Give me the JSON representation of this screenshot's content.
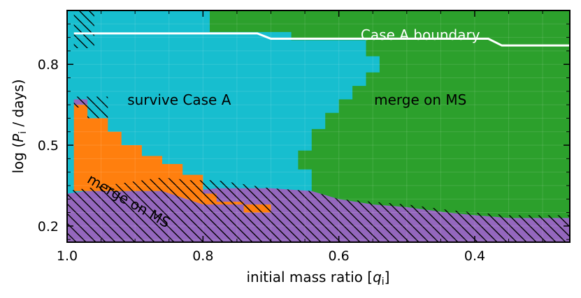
{
  "chart_data": {
    "type": "heatmap",
    "title": "",
    "xlabel": "initial mass ratio [q_i]",
    "xlabel_parts": {
      "pre": "initial mass ratio [",
      "italic": "q",
      "sub": "i",
      "post": "]"
    },
    "ylabel": "log (P_i / days)",
    "ylabel_parts": {
      "pre": "log (",
      "italic": "P",
      "sub": "i",
      "post": " / days)"
    },
    "xlim": [
      1.0,
      0.26
    ],
    "ylim": [
      0.14,
      1.0
    ],
    "x_ticks": [
      1.0,
      0.8,
      0.6,
      0.4
    ],
    "x_tick_labels": [
      "1.0",
      "0.8",
      "0.6",
      "0.4"
    ],
    "y_ticks": [
      0.2,
      0.5,
      0.8
    ],
    "y_tick_labels": [
      "0.2",
      "0.5",
      "0.8"
    ],
    "grid": true,
    "colors": {
      "survive": "#17becf",
      "merge_ms": "#2ca02c",
      "merge_ms_low": "#ff7f0e",
      "merge_other": "#9467bd",
      "boundary": "#ffffff"
    },
    "regions": [
      {
        "key": "merge_other",
        "color": "#9467bd",
        "polygon": [
          [
            1.0,
            0.14
          ],
          [
            1.0,
            0.32
          ],
          [
            0.97,
            0.33
          ],
          [
            0.92,
            0.33
          ],
          [
            0.86,
            0.33
          ],
          [
            0.82,
            0.33
          ],
          [
            0.78,
            0.34
          ],
          [
            0.7,
            0.34
          ],
          [
            0.64,
            0.33
          ],
          [
            0.6,
            0.3
          ],
          [
            0.55,
            0.28
          ],
          [
            0.5,
            0.27
          ],
          [
            0.44,
            0.25
          ],
          [
            0.4,
            0.24
          ],
          [
            0.35,
            0.23
          ],
          [
            0.3,
            0.23
          ],
          [
            0.26,
            0.23
          ],
          [
            0.26,
            0.14
          ]
        ]
      },
      {
        "key": "merge_other_top_left",
        "color": "#9467bd",
        "polygon": [
          [
            0.99,
            0.67
          ],
          [
            0.97,
            0.67
          ],
          [
            0.97,
            0.65
          ],
          [
            0.99,
            0.65
          ]
        ]
      },
      {
        "key": "merge_ms_low",
        "color": "#ff7f0e",
        "polygon": [
          [
            0.99,
            0.65
          ],
          [
            0.97,
            0.65
          ],
          [
            0.97,
            0.6
          ],
          [
            0.94,
            0.6
          ],
          [
            0.94,
            0.55
          ],
          [
            0.92,
            0.55
          ],
          [
            0.92,
            0.5
          ],
          [
            0.89,
            0.5
          ],
          [
            0.89,
            0.46
          ],
          [
            0.86,
            0.46
          ],
          [
            0.86,
            0.43
          ],
          [
            0.83,
            0.43
          ],
          [
            0.83,
            0.39
          ],
          [
            0.8,
            0.39
          ],
          [
            0.8,
            0.32
          ],
          [
            0.78,
            0.32
          ],
          [
            0.78,
            0.29
          ],
          [
            0.74,
            0.29
          ],
          [
            0.74,
            0.25
          ],
          [
            0.7,
            0.25
          ],
          [
            0.7,
            0.28
          ],
          [
            0.8,
            0.28
          ],
          [
            0.86,
            0.33
          ],
          [
            0.97,
            0.33
          ],
          [
            0.99,
            0.33
          ]
        ]
      },
      {
        "key": "merge_ms",
        "color": "#2ca02c",
        "polygon": [
          [
            0.79,
            1.0
          ],
          [
            0.26,
            1.0
          ],
          [
            0.26,
            0.23
          ],
          [
            0.3,
            0.23
          ],
          [
            0.35,
            0.23
          ],
          [
            0.4,
            0.24
          ],
          [
            0.44,
            0.25
          ],
          [
            0.5,
            0.27
          ],
          [
            0.55,
            0.28
          ],
          [
            0.6,
            0.3
          ],
          [
            0.64,
            0.33
          ],
          [
            0.64,
            0.41
          ],
          [
            0.66,
            0.41
          ],
          [
            0.66,
            0.48
          ],
          [
            0.64,
            0.48
          ],
          [
            0.64,
            0.56
          ],
          [
            0.62,
            0.56
          ],
          [
            0.62,
            0.62
          ],
          [
            0.6,
            0.62
          ],
          [
            0.6,
            0.67
          ],
          [
            0.58,
            0.67
          ],
          [
            0.58,
            0.72
          ],
          [
            0.56,
            0.72
          ],
          [
            0.56,
            0.77
          ],
          [
            0.54,
            0.77
          ],
          [
            0.54,
            0.83
          ],
          [
            0.56,
            0.83
          ],
          [
            0.56,
            0.89
          ],
          [
            0.67,
            0.89
          ],
          [
            0.67,
            0.92
          ],
          [
            0.79,
            0.92
          ]
        ]
      }
    ],
    "hatched_regions": [
      {
        "polygon": [
          [
            0.99,
            1.0
          ],
          [
            0.96,
            1.0
          ],
          [
            0.96,
            0.86
          ],
          [
            0.99,
            0.86
          ]
        ]
      },
      {
        "polygon": [
          [
            0.99,
            0.68
          ],
          [
            0.97,
            0.68
          ],
          [
            0.97,
            0.64
          ],
          [
            0.99,
            0.64
          ]
        ]
      },
      {
        "polygon": [
          [
            0.97,
            0.68
          ],
          [
            0.94,
            0.68
          ],
          [
            0.94,
            0.6
          ],
          [
            0.97,
            0.6
          ]
        ]
      },
      {
        "polygon": [
          [
            1.0,
            0.14
          ],
          [
            1.0,
            0.33
          ],
          [
            0.86,
            0.38
          ],
          [
            0.82,
            0.37
          ],
          [
            0.78,
            0.37
          ],
          [
            0.7,
            0.34
          ],
          [
            0.64,
            0.33
          ],
          [
            0.6,
            0.3
          ],
          [
            0.55,
            0.29
          ],
          [
            0.5,
            0.28
          ],
          [
            0.44,
            0.26
          ],
          [
            0.4,
            0.25
          ],
          [
            0.35,
            0.24
          ],
          [
            0.3,
            0.24
          ],
          [
            0.26,
            0.24
          ],
          [
            0.26,
            0.14
          ]
        ]
      }
    ],
    "boundary": {
      "name": "Case A boundary",
      "x": [
        0.99,
        0.72,
        0.7,
        0.38,
        0.36,
        0.26
      ],
      "y": [
        0.915,
        0.915,
        0.895,
        0.895,
        0.87,
        0.87
      ]
    },
    "annotations": [
      {
        "text": "survive Case A",
        "x": 0.835,
        "y": 0.665,
        "color": "#000000",
        "rotate": 0
      },
      {
        "text": "merge on MS",
        "x": 0.48,
        "y": 0.665,
        "color": "#000000",
        "rotate": 0
      },
      {
        "text": "Case A boundary",
        "x": 0.48,
        "y": 0.905,
        "color": "#ffffff",
        "rotate": 0
      },
      {
        "text": "merge on MS",
        "x": 0.91,
        "y": 0.29,
        "color": "#000000",
        "rotate": 30
      }
    ]
  }
}
